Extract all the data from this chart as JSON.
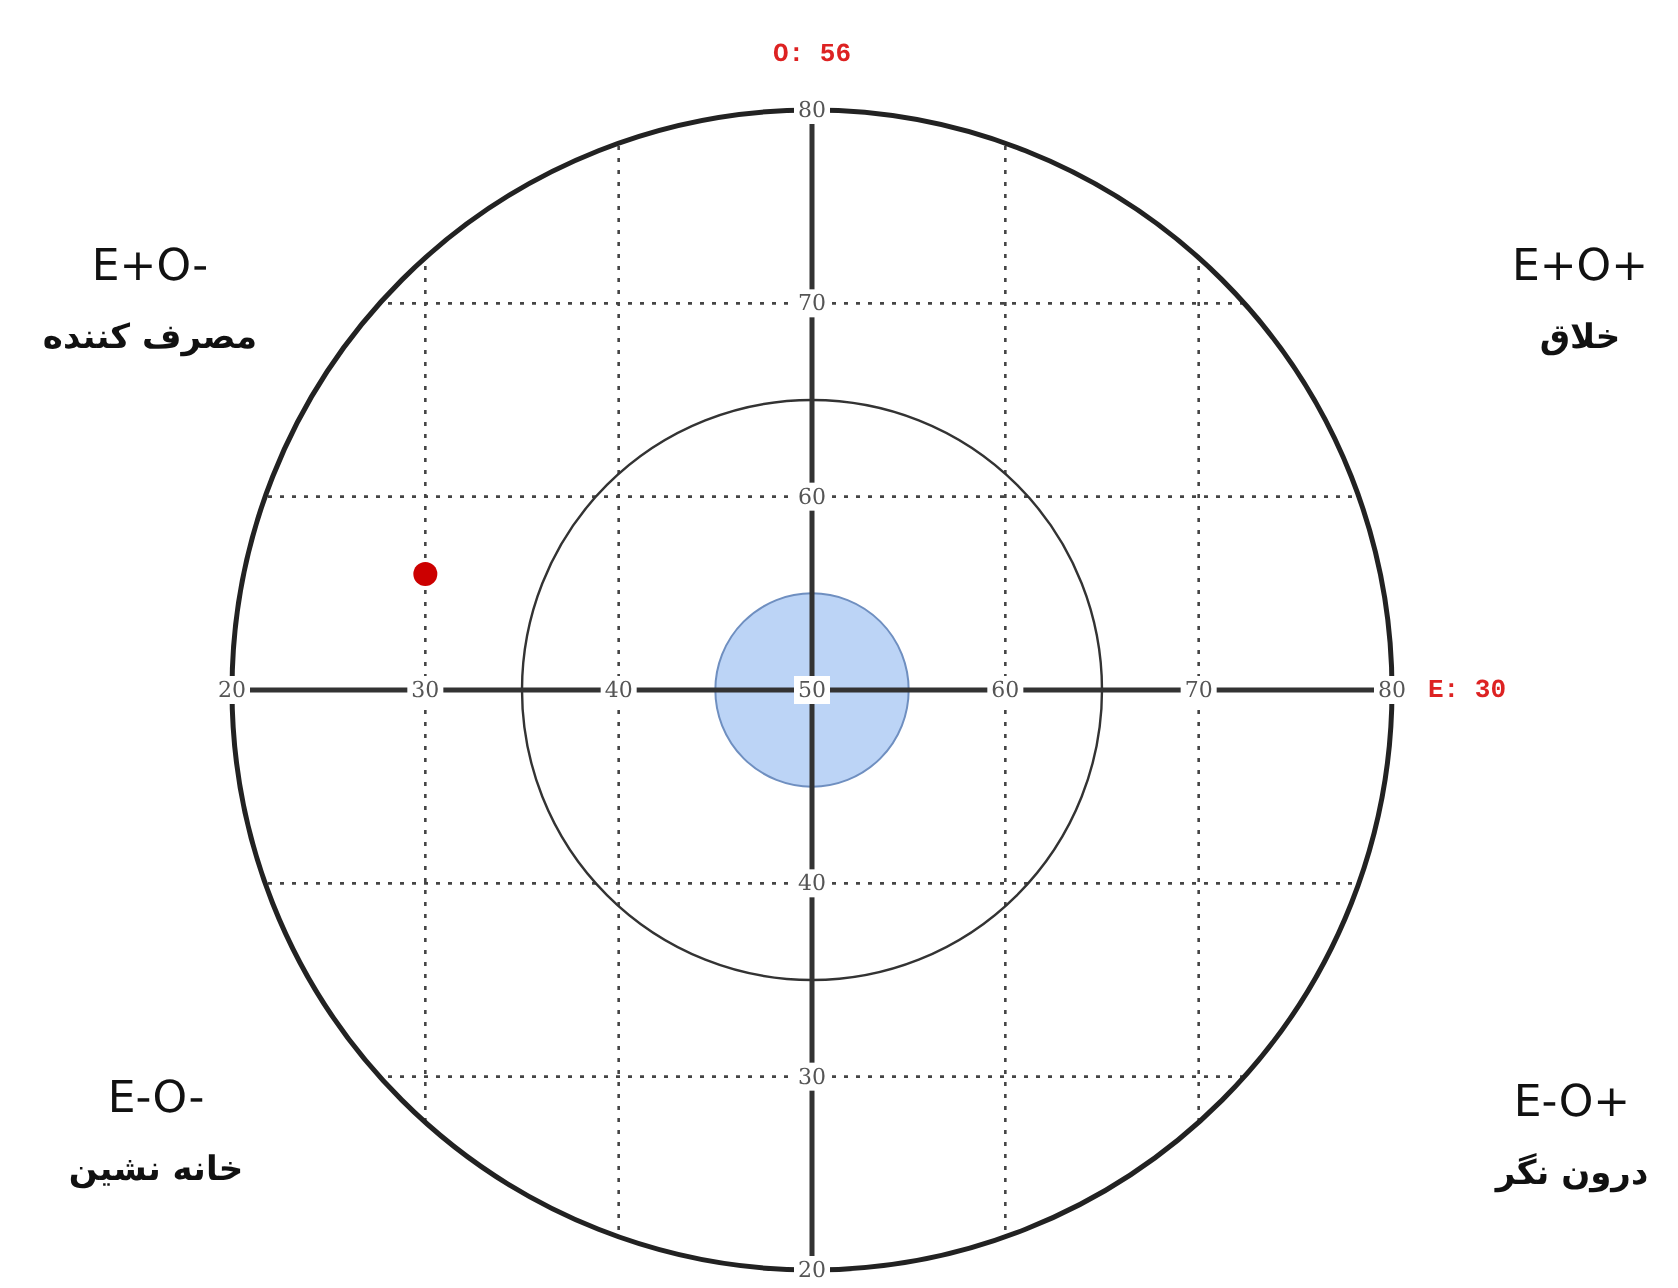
{
  "chart_data": {
    "type": "scatter",
    "x": [
      30
    ],
    "values": [
      56
    ],
    "color": "#cc0000",
    "marker": "circle",
    "xlim": [
      20,
      80
    ],
    "ylim": [
      20,
      80
    ],
    "xticks": [
      20,
      30,
      40,
      50,
      60,
      70,
      80
    ],
    "yticks": [
      20,
      30,
      40,
      {
        "value": 50,
        "label": null
      },
      60,
      70,
      80
    ],
    "grid": true,
    "annotations": [
      "O: 56",
      "E: 30",
      "E+O-\nمصرف کننده",
      "E+O+\nخلاق",
      "E-O-\nخانه نشین",
      "E-O+\nدرون نگر"
    ]
  }
}
